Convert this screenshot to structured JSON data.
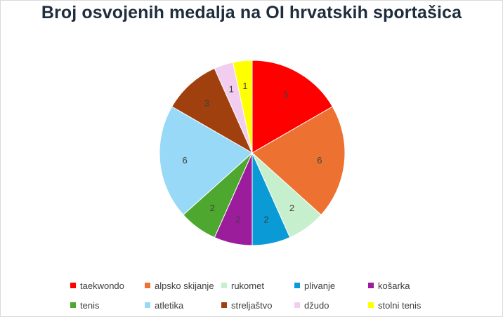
{
  "chart_data": {
    "type": "pie",
    "title": "Broj osvojenih medalja na OI hrvatskih sportašica",
    "categories": [
      "taekwondo",
      "alpsko skijanje",
      "rukomet",
      "plivanje",
      "košarka",
      "tenis",
      "atletika",
      "streljaštvo",
      "džudo",
      "stolni tenis"
    ],
    "values": [
      5,
      6,
      2,
      2,
      2,
      2,
      6,
      3,
      1,
      1
    ],
    "colors": [
      "#ff0000",
      "#ed7232",
      "#c6efce",
      "#0a9ad6",
      "#9b1d9b",
      "#4ea72e",
      "#98d9f7",
      "#a0400e",
      "#f2cdef",
      "#ffff00"
    ],
    "data_labels": true,
    "legend_position": "bottom"
  }
}
